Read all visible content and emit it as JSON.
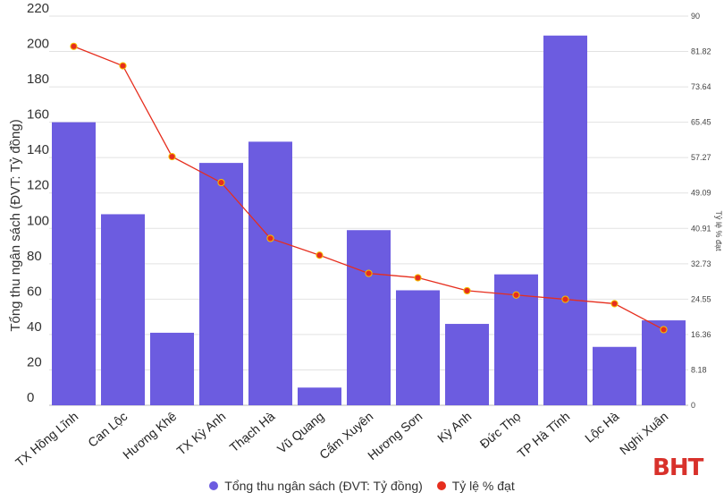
{
  "chart_data": {
    "type": "bar",
    "title": "",
    "categories": [
      "TX Hồng Lĩnh",
      "Can Lộc",
      "Hương Khê",
      "TX Kỳ Anh",
      "Thạch Hà",
      "Vũ Quang",
      "Cẩm Xuyên",
      "Hương Sơn",
      "Kỳ Anh",
      "Đức Thọ",
      "TP Hà Tĩnh",
      "Lộc Hà",
      "Nghi Xuân"
    ],
    "series": [
      {
        "name": "Tổng thu ngân sách (ĐVT: Tỷ đồng)",
        "type": "bar",
        "axis": "left",
        "color": "#6c5ce0",
        "values": [
          160,
          108,
          41,
          137,
          149,
          10,
          99,
          65,
          46,
          74,
          209,
          33,
          48
        ]
      },
      {
        "name": "Tỷ lệ % đạt",
        "type": "line",
        "axis": "right",
        "color": "#e62e1e",
        "values": [
          83,
          78.5,
          57.5,
          51.5,
          38.6,
          34.7,
          30.5,
          29.5,
          26.5,
          25.5,
          24.5,
          23.5,
          17.5
        ]
      }
    ],
    "ylabel": "Tổng thu ngân sách (ĐVT: Tỷ đồng)",
    "y2label": "Tỷ lệ % đạt",
    "ylim": [
      0,
      220
    ],
    "yticks": [
      "0",
      "20",
      "40",
      "60",
      "80",
      "100",
      "120",
      "140",
      "160",
      "180",
      "200",
      "220"
    ],
    "y2lim": [
      0,
      90
    ],
    "y2ticks": [
      "0",
      "8.18",
      "16.36",
      "24.55",
      "32.73",
      "40.91",
      "49.09",
      "57.27",
      "65.45",
      "73.64",
      "81.82",
      "90"
    ],
    "grid": true,
    "legend_position": "bottom-center"
  },
  "watermark": "BHT"
}
